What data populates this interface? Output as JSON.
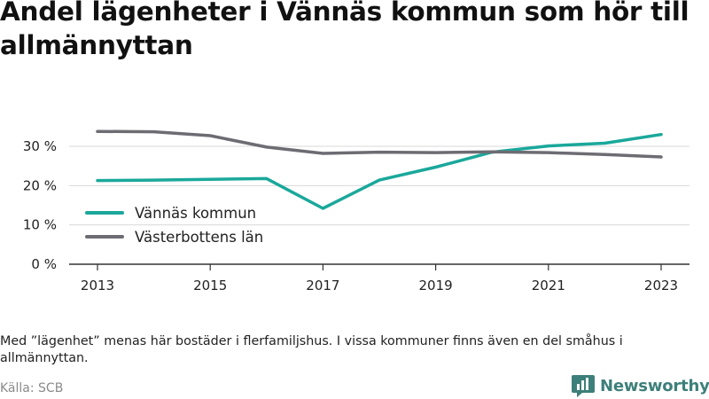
{
  "title": "Andel lägenheter i Vännäs kommun som hör till allmännyttan",
  "note": "Med ”lägenhet” menas här bostäder i flerfamiljshus. I vissa kommuner finns även en del småhus i allmännyttan.",
  "source": "Källa: SCB",
  "brand": {
    "name": "Newsworthy",
    "icon": "newsworthy-logo-icon"
  },
  "colors": {
    "vannas": "#1aa89b",
    "vasterbotten": "#6d6c73",
    "grid": "#d9d9d9",
    "axis": "#333333"
  },
  "chart_data": {
    "type": "line",
    "x": [
      2013,
      2014,
      2015,
      2016,
      2017,
      2018,
      2019,
      2020,
      2021,
      2022,
      2023
    ],
    "xticks": [
      2013,
      2015,
      2017,
      2019,
      2021,
      2023
    ],
    "ylim": [
      0,
      35
    ],
    "yticks": [
      0,
      10,
      20,
      30
    ],
    "ytick_labels": [
      "0 %",
      "10 %",
      "20 %",
      "30 %"
    ],
    "grid": true,
    "legend_position": "left, lower middle",
    "series": [
      {
        "name": "Vännäs kommun",
        "color": "#1aa89b",
        "values": [
          21.3,
          21.4,
          21.6,
          21.8,
          14.2,
          21.4,
          24.7,
          28.5,
          30.1,
          30.8,
          33.0
        ]
      },
      {
        "name": "Västerbottens län",
        "color": "#6d6c73",
        "values": [
          33.8,
          33.7,
          32.7,
          29.8,
          28.2,
          28.5,
          28.4,
          28.6,
          28.4,
          27.9,
          27.3
        ]
      }
    ]
  }
}
